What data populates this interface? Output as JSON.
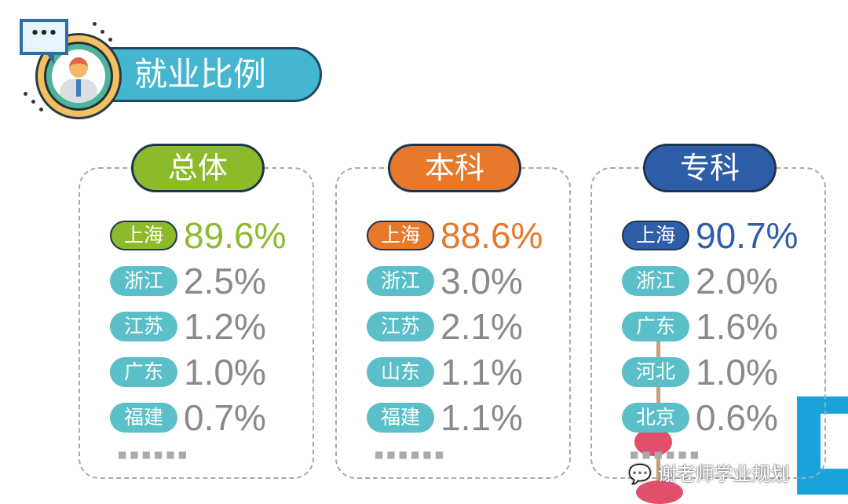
{
  "title": "就业比例",
  "colors": {
    "total": "#8dba2a",
    "undergrad": "#e8782a",
    "junior": "#2f5ea8",
    "pill": "#5bbfc9",
    "title_bar": "#45b6cf"
  },
  "panels": [
    {
      "label": "总体",
      "color": "#8dba2a",
      "rows": [
        {
          "region": "上海",
          "pct": "89.6%"
        },
        {
          "region": "浙江",
          "pct": "2.5%"
        },
        {
          "region": "江苏",
          "pct": "1.2%"
        },
        {
          "region": "广东",
          "pct": "1.0%"
        },
        {
          "region": "福建",
          "pct": "0.7%"
        }
      ]
    },
    {
      "label": "本科",
      "color": "#e8782a",
      "rows": [
        {
          "region": "上海",
          "pct": "88.6%"
        },
        {
          "region": "浙江",
          "pct": "3.0%"
        },
        {
          "region": "江苏",
          "pct": "2.1%"
        },
        {
          "region": "山东",
          "pct": "1.1%"
        },
        {
          "region": "福建",
          "pct": "1.1%"
        }
      ]
    },
    {
      "label": "专科",
      "color": "#2f5ea8",
      "rows": [
        {
          "region": "上海",
          "pct": "90.7%"
        },
        {
          "region": "浙江",
          "pct": "2.0%"
        },
        {
          "region": "广东",
          "pct": "1.6%"
        },
        {
          "region": "河北",
          "pct": "1.0%"
        },
        {
          "region": "北京",
          "pct": "0.6%"
        }
      ]
    }
  ],
  "more_dots": "■■■■■■",
  "watermark": "谢老师学业规划"
}
